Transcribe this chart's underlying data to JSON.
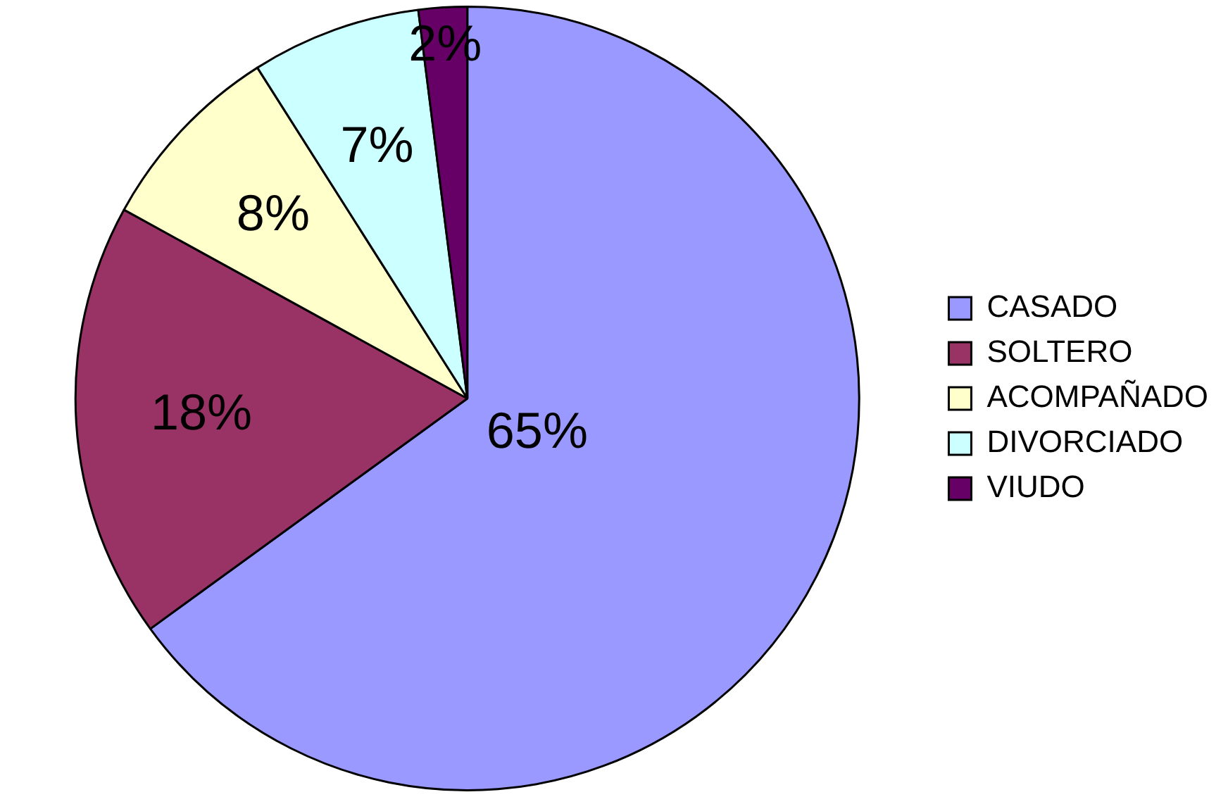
{
  "chart_data": {
    "type": "pie",
    "categories": [
      "CASADO",
      "SOLTERO",
      "ACOMPAÑADO",
      "DIVORCIADO",
      "VIUDO"
    ],
    "values": [
      65,
      18,
      8,
      7,
      2
    ],
    "colors": [
      "#9999ff",
      "#993366",
      "#ffffcc",
      "#ccffff",
      "#660066"
    ],
    "value_labels": [
      "65%",
      "18%",
      "8%",
      "7%",
      "2%"
    ],
    "legend": "right"
  }
}
